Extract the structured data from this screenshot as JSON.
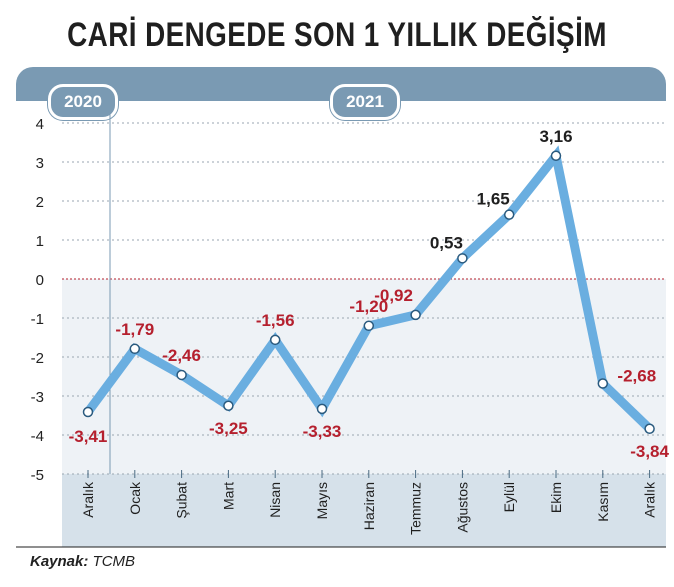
{
  "title": "CARİ DENGEDE SON 1 YILLIK DEĞİŞİM",
  "years": {
    "left": "2020",
    "right": "2021"
  },
  "source": {
    "label": "Kaynak:",
    "value": "TCMB"
  },
  "colors": {
    "line": "#6aaee0",
    "negative_label": "#b5202e",
    "positive_label": "#1f1f1f",
    "banner": "#7a9ab3",
    "negative_bg": "#eef2f6"
  },
  "chart_data": {
    "type": "line",
    "categories": [
      "Aralık",
      "Ocak",
      "Şubat",
      "Mart",
      "Nisan",
      "Mayıs",
      "Haziran",
      "Temmuz",
      "Ağustos",
      "Eylül",
      "Ekim",
      "Kasım",
      "Aralık"
    ],
    "values": [
      -3.41,
      -1.79,
      -2.46,
      -3.25,
      -1.56,
      -3.33,
      -1.2,
      -0.92,
      0.53,
      1.65,
      3.16,
      -2.68,
      -3.84
    ],
    "value_labels": [
      "-3,41",
      "-1,79",
      "-2,46",
      "-3,25",
      "-1,56",
      "-3,33",
      "-1,20",
      "",
      "0,53",
      "1,65",
      "3,16",
      "-2,68",
      "-3,84"
    ],
    "y_ticks": [
      "4",
      "3",
      "2",
      "1",
      "0",
      "-1",
      "-2",
      "-3",
      "-4",
      "-5"
    ],
    "ylim": [
      -5,
      4
    ],
    "grid": true
  }
}
